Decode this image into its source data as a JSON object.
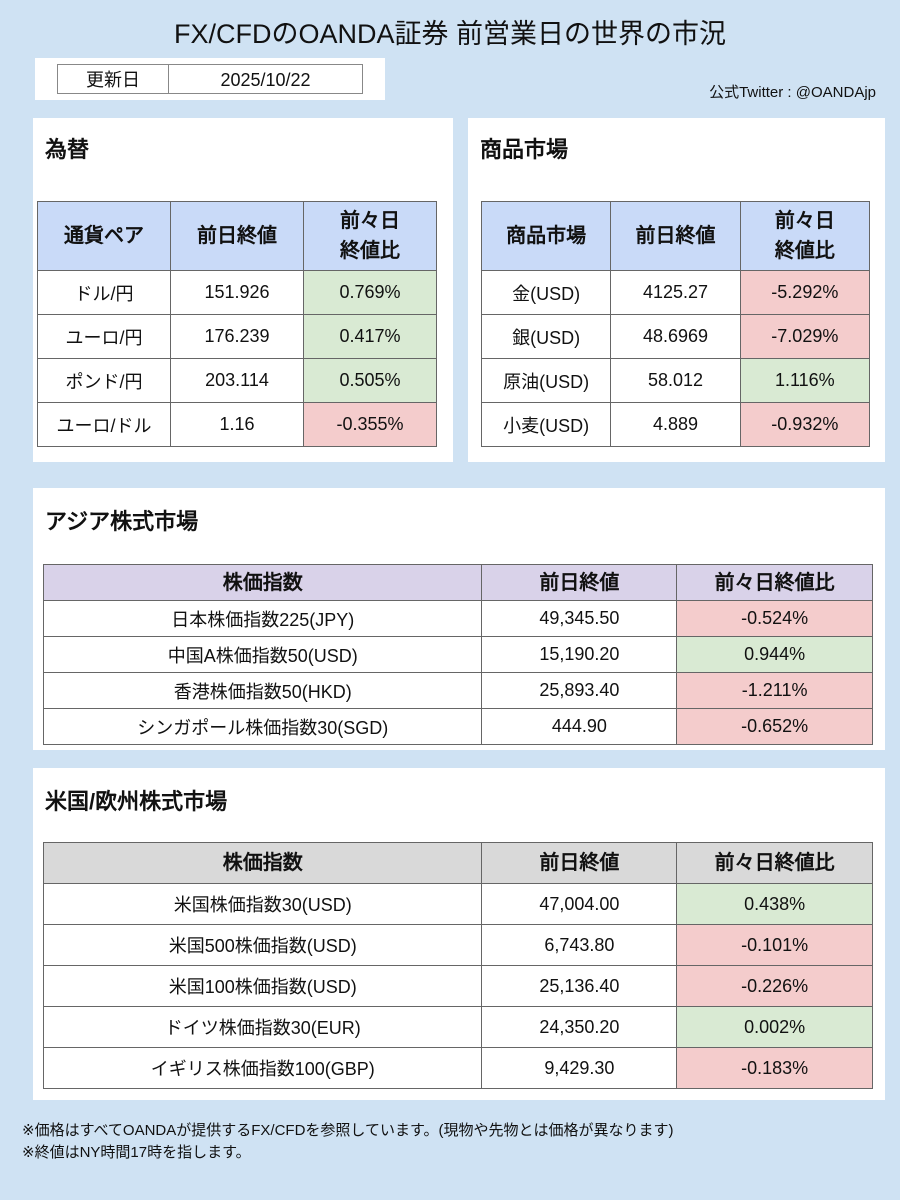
{
  "header": {
    "title": "FX/CFDのOANDA証券 前営業日の世界の市況",
    "update_label": "更新日",
    "update_date": "2025/10/22",
    "twitter": "公式Twitter : @OANDAjp"
  },
  "sections": [
    {
      "title": "為替",
      "table": {
        "header": [
          "通貨ペア",
          "前日終値",
          "前々日\n終値比"
        ],
        "rows": [
          [
            "ドル/円",
            "151.926",
            "0.769%"
          ],
          [
            "ユーロ/円",
            "176.239",
            "0.417%"
          ],
          [
            "ポンド/円",
            "203.114",
            "0.505%"
          ],
          [
            "ユーロ/ドル",
            "1.16",
            "-0.355%"
          ]
        ]
      }
    },
    {
      "title": "商品市場",
      "table": {
        "header": [
          "商品市場",
          "前日終値",
          "前々日\n終値比"
        ],
        "rows": [
          [
            "金(USD)",
            "4125.27",
            "-5.292%"
          ],
          [
            "銀(USD)",
            "48.6969",
            "-7.029%"
          ],
          [
            "原油(USD)",
            "58.012",
            "1.116%"
          ],
          [
            "小麦(USD)",
            "4.889",
            "-0.932%"
          ]
        ]
      }
    },
    {
      "title": "アジア株式市場",
      "table": {
        "header": [
          "株価指数",
          "前日終値",
          "前々日終値比"
        ],
        "rows": [
          [
            "日本株価指数225(JPY)",
            "49,345.50",
            "-0.524%"
          ],
          [
            "中国A株価指数50(USD)",
            "15,190.20",
            "0.944%"
          ],
          [
            "香港株価指数50(HKD)",
            "25,893.40",
            "-1.211%"
          ],
          [
            "シンガポール株価指数30(SGD)",
            "444.90",
            "-0.652%"
          ]
        ]
      }
    },
    {
      "title": "米国/欧州株式市場",
      "table": {
        "header": [
          "株価指数",
          "前日終値",
          "前々日終値比"
        ],
        "rows": [
          [
            "米国株価指数30(USD)",
            "47,004.00",
            "0.438%"
          ],
          [
            "米国500株価指数(USD)",
            "6,743.80",
            "-0.101%"
          ],
          [
            "米国100株価指数(USD)",
            "25,136.40",
            "-0.226%"
          ],
          [
            "ドイツ株価指数30(EUR)",
            "24,350.20",
            "0.002%"
          ],
          [
            "イギリス株価指数100(GBP)",
            "9,429.30",
            "-0.183%"
          ]
        ]
      }
    }
  ],
  "notes": [
    "※価格はすべてOANDAが提供するFX/CFDを参照しています。(現物や先物とは価格が異なります)",
    "※終値はNY時間17時を指します。"
  ]
}
